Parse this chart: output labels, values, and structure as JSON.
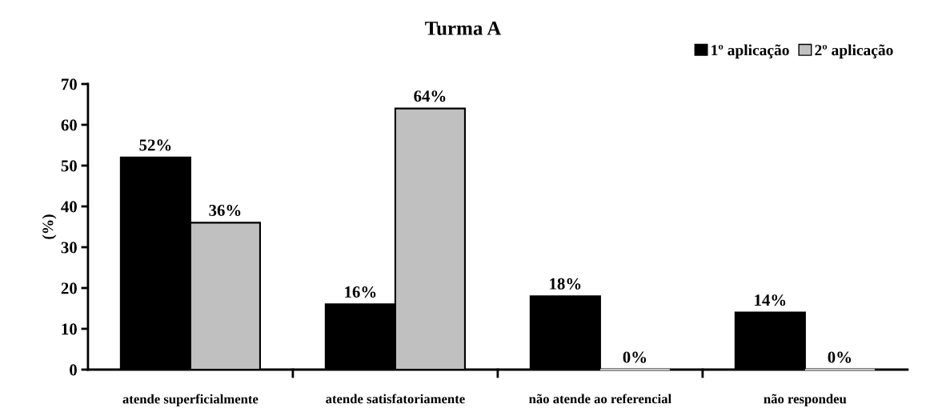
{
  "chart_data": {
    "type": "bar",
    "title": "Turma A",
    "ylabel": "(%)",
    "categories": [
      "atende superficialmente",
      "atende satisfatoriamente",
      "não atende ao referencial",
      "não respondeu"
    ],
    "series": [
      {
        "name": "1º aplicação",
        "color": "#000000",
        "values": [
          52,
          16,
          18,
          14
        ],
        "value_labels": [
          "52%",
          "16%",
          "18%",
          "14%"
        ]
      },
      {
        "name": "2º aplicação",
        "color": "#c0c0c0",
        "values": [
          36,
          64,
          0,
          0
        ],
        "value_labels": [
          "36%",
          "64%",
          "0%",
          "0%"
        ]
      }
    ],
    "ylim": [
      0,
      70
    ],
    "yticks": [
      0,
      10,
      20,
      30,
      40,
      50,
      60,
      70
    ],
    "grid": false,
    "legend": "top right"
  }
}
